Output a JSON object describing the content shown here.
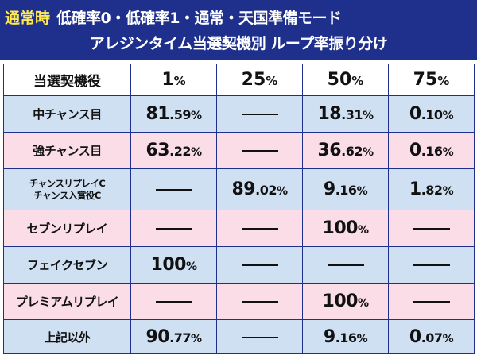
{
  "header": {
    "mode": "通常時",
    "title_line1": "低確率0・低確率1・通常・天国準備モード",
    "title_line2": "アレジンタイム当選契機別  ループ率振り分け"
  },
  "table": {
    "columns": [
      "当選契機役",
      "1%",
      "25%",
      "50%",
      "75%"
    ],
    "rows": [
      {
        "label": "中チャンス目",
        "values": [
          "81.59%",
          "",
          "18.31%",
          "0.10%"
        ]
      },
      {
        "label": "強チャンス目",
        "values": [
          "63.22%",
          "",
          "36.62%",
          "0.16%"
        ]
      },
      {
        "label_lines": [
          "チャンスリプレイC",
          "チャンス入賞役C"
        ],
        "values": [
          "",
          "89.02%",
          "9.16%",
          "1.82%"
        ]
      },
      {
        "label": "セブンリプレイ",
        "values": [
          "",
          "",
          "100%",
          ""
        ]
      },
      {
        "label": "フェイクセブン",
        "values": [
          "100%",
          "",
          "",
          ""
        ]
      },
      {
        "label": "プレミアムリプレイ",
        "values": [
          "",
          "",
          "100%",
          ""
        ]
      },
      {
        "label": "上記以外",
        "values": [
          "90.77%",
          "",
          "9.16%",
          "0.07%"
        ]
      }
    ]
  },
  "colors": {
    "header_bg": "#1e2f8c",
    "badge_text": "#ffe94d",
    "row_blue": "#cfe0f3",
    "row_pink": "#fbdde8"
  }
}
